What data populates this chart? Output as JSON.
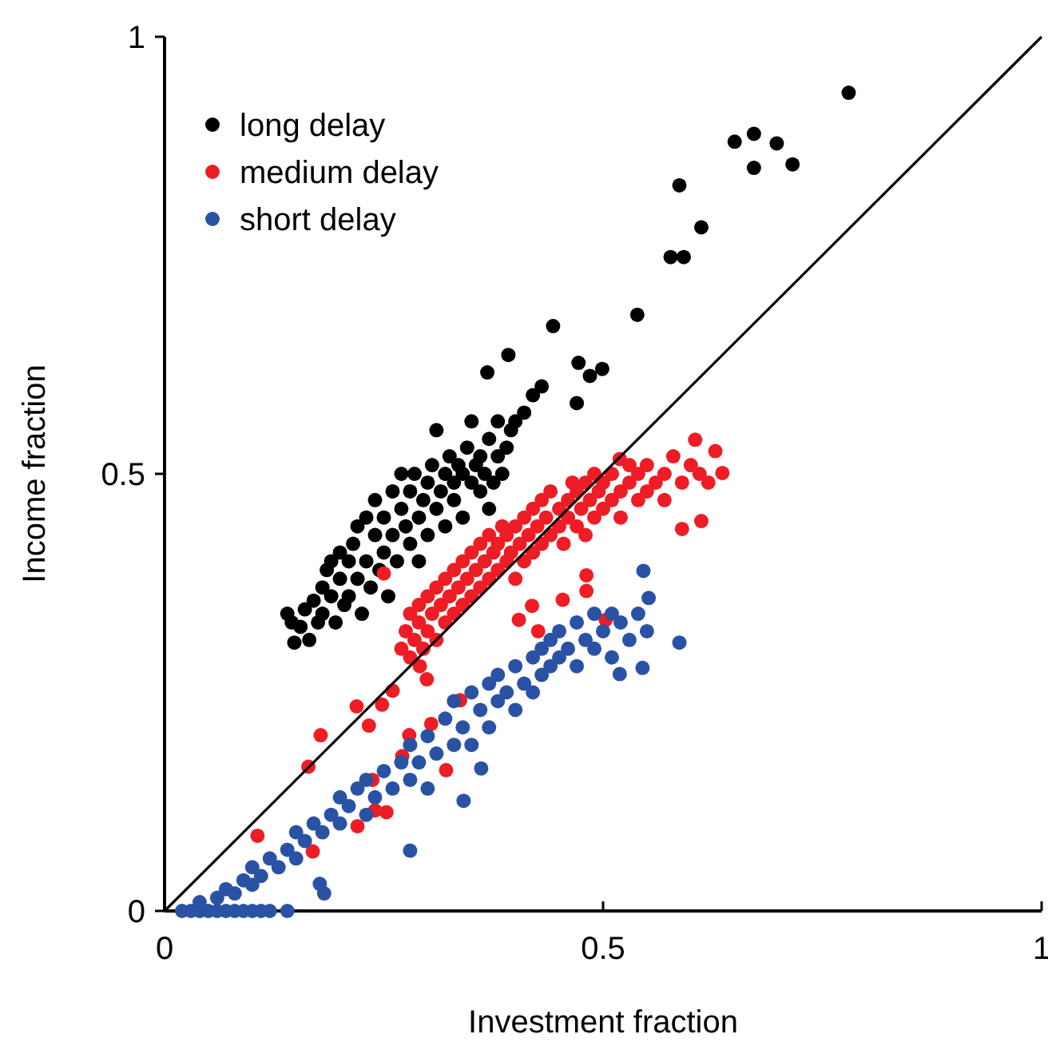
{
  "chart_data": {
    "type": "scatter",
    "xlabel": "Investment fraction",
    "ylabel": "Income fraction",
    "xlim": [
      0,
      1
    ],
    "ylim": [
      0,
      1
    ],
    "xticks": [
      0,
      0.5,
      1
    ],
    "yticks": [
      0,
      0.5,
      1
    ],
    "grid": false,
    "legend": "top left",
    "marker": "circle",
    "series": [
      {
        "name": "long delay",
        "color": "#000000",
        "x": [
          0.148,
          0.145,
          0.14,
          0.155,
          0.16,
          0.165,
          0.17,
          0.175,
          0.18,
          0.18,
          0.185,
          0.19,
          0.19,
          0.195,
          0.2,
          0.2,
          0.205,
          0.21,
          0.21,
          0.215,
          0.22,
          0.22,
          0.225,
          0.23,
          0.23,
          0.235,
          0.24,
          0.24,
          0.245,
          0.25,
          0.25,
          0.255,
          0.26,
          0.26,
          0.265,
          0.27,
          0.27,
          0.275,
          0.28,
          0.28,
          0.285,
          0.29,
          0.29,
          0.295,
          0.3,
          0.3,
          0.305,
          0.31,
          0.31,
          0.315,
          0.32,
          0.32,
          0.325,
          0.33,
          0.33,
          0.335,
          0.34,
          0.34,
          0.345,
          0.35,
          0.35,
          0.355,
          0.36,
          0.36,
          0.365,
          0.37,
          0.37,
          0.375,
          0.38,
          0.38,
          0.385,
          0.39,
          0.395,
          0.4,
          0.41,
          0.42,
          0.43,
          0.392,
          0.368,
          0.443,
          0.472,
          0.485,
          0.499,
          0.47,
          0.539,
          0.577,
          0.592,
          0.612,
          0.587,
          0.672,
          0.65,
          0.672,
          0.698,
          0.716,
          0.78
        ],
        "values": [
          0.307,
          0.33,
          0.34,
          0.325,
          0.345,
          0.31,
          0.355,
          0.33,
          0.37,
          0.34,
          0.39,
          0.36,
          0.4,
          0.33,
          0.38,
          0.41,
          0.35,
          0.4,
          0.36,
          0.42,
          0.38,
          0.44,
          0.34,
          0.4,
          0.45,
          0.37,
          0.43,
          0.47,
          0.39,
          0.41,
          0.45,
          0.36,
          0.48,
          0.43,
          0.4,
          0.46,
          0.5,
          0.44,
          0.42,
          0.48,
          0.5,
          0.45,
          0.4,
          0.47,
          0.49,
          0.43,
          0.51,
          0.46,
          0.55,
          0.48,
          0.5,
          0.44,
          0.52,
          0.47,
          0.49,
          0.51,
          0.5,
          0.45,
          0.53,
          0.49,
          0.56,
          0.51,
          0.48,
          0.52,
          0.5,
          0.54,
          0.46,
          0.49,
          0.52,
          0.56,
          0.5,
          0.53,
          0.55,
          0.56,
          0.57,
          0.59,
          0.6,
          0.636,
          0.616,
          0.669,
          0.627,
          0.612,
          0.62,
          0.581,
          0.682,
          0.748,
          0.748,
          0.782,
          0.83,
          0.85,
          0.88,
          0.889,
          0.878,
          0.854,
          0.936
        ]
      },
      {
        "name": "medium delay",
        "color": "#ee1c25",
        "x": [
          0.27,
          0.275,
          0.28,
          0.28,
          0.285,
          0.29,
          0.29,
          0.295,
          0.3,
          0.3,
          0.305,
          0.31,
          0.31,
          0.315,
          0.32,
          0.32,
          0.325,
          0.33,
          0.33,
          0.335,
          0.34,
          0.34,
          0.345,
          0.35,
          0.35,
          0.355,
          0.36,
          0.36,
          0.365,
          0.37,
          0.37,
          0.375,
          0.38,
          0.38,
          0.385,
          0.39,
          0.39,
          0.395,
          0.4,
          0.4,
          0.405,
          0.41,
          0.41,
          0.415,
          0.42,
          0.42,
          0.425,
          0.43,
          0.43,
          0.435,
          0.44,
          0.44,
          0.45,
          0.45,
          0.455,
          0.46,
          0.46,
          0.465,
          0.47,
          0.47,
          0.475,
          0.48,
          0.48,
          0.485,
          0.49,
          0.49,
          0.495,
          0.5,
          0.5,
          0.51,
          0.51,
          0.52,
          0.52,
          0.53,
          0.53,
          0.54,
          0.54,
          0.55,
          0.55,
          0.56,
          0.57,
          0.57,
          0.58,
          0.59,
          0.6,
          0.61,
          0.62,
          0.519,
          0.605,
          0.628,
          0.636,
          0.612,
          0.59,
          0.481,
          0.481,
          0.404,
          0.419,
          0.426,
          0.454,
          0.503,
          0.291,
          0.299,
          0.25,
          0.106,
          0.164,
          0.178,
          0.219,
          0.248,
          0.26,
          0.233,
          0.279,
          0.304,
          0.271,
          0.321,
          0.337,
          0.237,
          0.24,
          0.253,
          0.22,
          0.169
        ],
        "values": [
          0.3,
          0.32,
          0.34,
          0.29,
          0.31,
          0.33,
          0.35,
          0.3,
          0.32,
          0.36,
          0.34,
          0.31,
          0.37,
          0.35,
          0.33,
          0.38,
          0.36,
          0.34,
          0.39,
          0.37,
          0.35,
          0.4,
          0.38,
          0.36,
          0.41,
          0.39,
          0.37,
          0.42,
          0.4,
          0.38,
          0.43,
          0.41,
          0.39,
          0.42,
          0.44,
          0.4,
          0.43,
          0.41,
          0.44,
          0.38,
          0.42,
          0.45,
          0.4,
          0.43,
          0.41,
          0.46,
          0.44,
          0.42,
          0.47,
          0.45,
          0.43,
          0.48,
          0.44,
          0.46,
          0.42,
          0.47,
          0.45,
          0.49,
          0.44,
          0.48,
          0.46,
          0.49,
          0.43,
          0.47,
          0.45,
          0.5,
          0.48,
          0.46,
          0.49,
          0.47,
          0.5,
          0.48,
          0.45,
          0.49,
          0.51,
          0.47,
          0.5,
          0.48,
          0.51,
          0.49,
          0.5,
          0.47,
          0.52,
          0.49,
          0.51,
          0.5,
          0.49,
          0.517,
          0.539,
          0.526,
          0.501,
          0.446,
          0.437,
          0.384,
          0.366,
          0.333,
          0.349,
          0.32,
          0.356,
          0.333,
          0.28,
          0.265,
          0.386,
          0.086,
          0.165,
          0.201,
          0.234,
          0.236,
          0.252,
          0.212,
          0.201,
          0.214,
          0.177,
          0.161,
          0.241,
          0.15,
          0.115,
          0.113,
          0.097,
          0.068
        ]
      },
      {
        "name": "short delay",
        "color": "#2a52a4",
        "x": [
          0.02,
          0.03,
          0.04,
          0.05,
          0.06,
          0.07,
          0.08,
          0.09,
          0.1,
          0.11,
          0.12,
          0.14,
          0.04,
          0.06,
          0.07,
          0.08,
          0.09,
          0.1,
          0.1,
          0.11,
          0.12,
          0.13,
          0.14,
          0.15,
          0.15,
          0.16,
          0.17,
          0.18,
          0.19,
          0.2,
          0.2,
          0.21,
          0.22,
          0.23,
          0.23,
          0.24,
          0.25,
          0.26,
          0.27,
          0.28,
          0.28,
          0.29,
          0.3,
          0.3,
          0.31,
          0.32,
          0.33,
          0.33,
          0.34,
          0.35,
          0.35,
          0.36,
          0.37,
          0.37,
          0.38,
          0.38,
          0.39,
          0.4,
          0.4,
          0.41,
          0.42,
          0.42,
          0.43,
          0.43,
          0.44,
          0.44,
          0.45,
          0.45,
          0.46,
          0.47,
          0.47,
          0.48,
          0.49,
          0.49,
          0.5,
          0.51,
          0.51,
          0.52,
          0.53,
          0.54,
          0.55,
          0.546,
          0.552,
          0.587,
          0.545,
          0.519,
          0.341,
          0.28,
          0.182,
          0.177,
          0.361
        ],
        "values": [
          0,
          0,
          0,
          0,
          0,
          0,
          0,
          0,
          0,
          0,
          0,
          0,
          0.01,
          0.015,
          0.025,
          0.02,
          0.035,
          0.03,
          0.05,
          0.04,
          0.06,
          0.05,
          0.07,
          0.06,
          0.09,
          0.08,
          0.1,
          0.09,
          0.11,
          0.1,
          0.13,
          0.12,
          0.14,
          0.11,
          0.15,
          0.13,
          0.16,
          0.14,
          0.17,
          0.15,
          0.19,
          0.17,
          0.2,
          0.14,
          0.18,
          0.22,
          0.19,
          0.24,
          0.21,
          0.25,
          0.19,
          0.23,
          0.26,
          0.21,
          0.27,
          0.24,
          0.25,
          0.28,
          0.23,
          0.26,
          0.29,
          0.25,
          0.3,
          0.27,
          0.31,
          0.28,
          0.29,
          0.32,
          0.3,
          0.33,
          0.28,
          0.31,
          0.34,
          0.3,
          0.32,
          0.34,
          0.29,
          0.33,
          0.31,
          0.34,
          0.32,
          0.389,
          0.358,
          0.307,
          0.278,
          0.271,
          0.126,
          0.069,
          0.02,
          0.031,
          0.163
        ]
      },
      {
        "type": "line",
        "color": "#000000",
        "marker": "none",
        "x": [
          0,
          1
        ],
        "values": [
          0,
          1
        ]
      }
    ]
  }
}
